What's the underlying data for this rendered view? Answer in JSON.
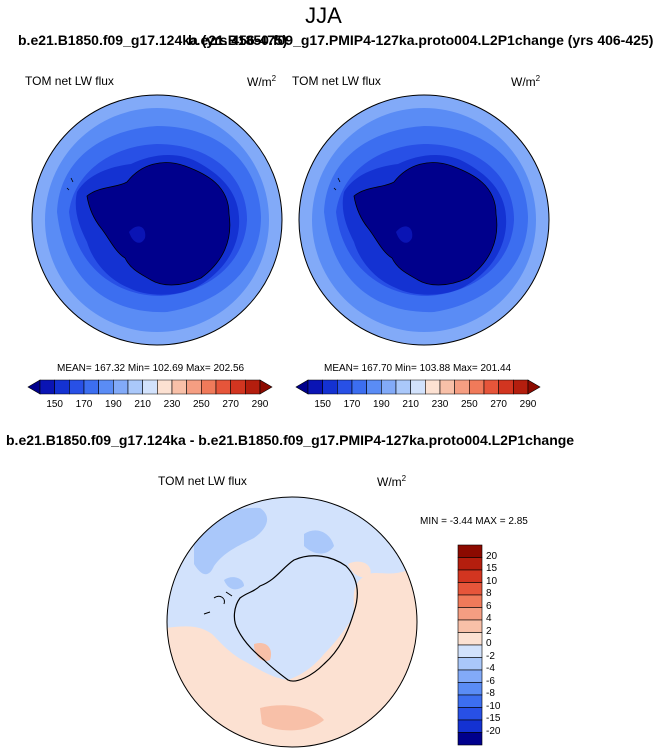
{
  "title": "JJA",
  "left_case": "b.e21.B1850.f09_g17.124ka (yrs 456-475)",
  "right_case": "b.e21.B1850.f09_g17.PMIP4-127ka.proto004.L2P1change (yrs 406-425)",
  "diff_case": "b.e21.B1850.f09_g17.124ka - b.e21.B1850.f09_g17.PMIP4-127ka.proto004.L2P1change",
  "variable": "TOM net LW flux",
  "units": "W/m",
  "units_exp": "2",
  "panels": [
    {
      "stats": "MEAN= 167.32  Min= 102.69  Max= 202.56"
    },
    {
      "stats": "MEAN= 167.70  Min= 103.88  Max= 201.44"
    }
  ],
  "diff_stats": "MIN =  -3.44 MAX =   2.85",
  "colorbar": {
    "labels": [
      "150",
      "170",
      "190",
      "210",
      "230",
      "250",
      "270",
      "290"
    ],
    "colors": [
      "#00008c",
      "#0a14b4",
      "#1432d2",
      "#2850e6",
      "#3c6ef0",
      "#5a8cf5",
      "#82aaf8",
      "#aac8fa",
      "#d2e2fc",
      "#fce1d2",
      "#f8c0a8",
      "#f59e82",
      "#f07a5a",
      "#e6553a",
      "#d23520",
      "#b41e0e",
      "#8c0a00"
    ]
  },
  "diff_colorbar": {
    "labels": [
      "20",
      "15",
      "10",
      "8",
      "6",
      "4",
      "2",
      "0",
      "-2",
      "-4",
      "-6",
      "-8",
      "-10",
      "-15",
      "-20"
    ],
    "colors": [
      "#8c0a00",
      "#b41e0e",
      "#d23520",
      "#e6553a",
      "#f07a5a",
      "#f59e82",
      "#f8c0a8",
      "#fce1d2",
      "#d2e2fc",
      "#aac8fa",
      "#82aaf8",
      "#5a8cf5",
      "#3c6ef0",
      "#2850e6",
      "#1432d2",
      "#00008c"
    ]
  }
}
